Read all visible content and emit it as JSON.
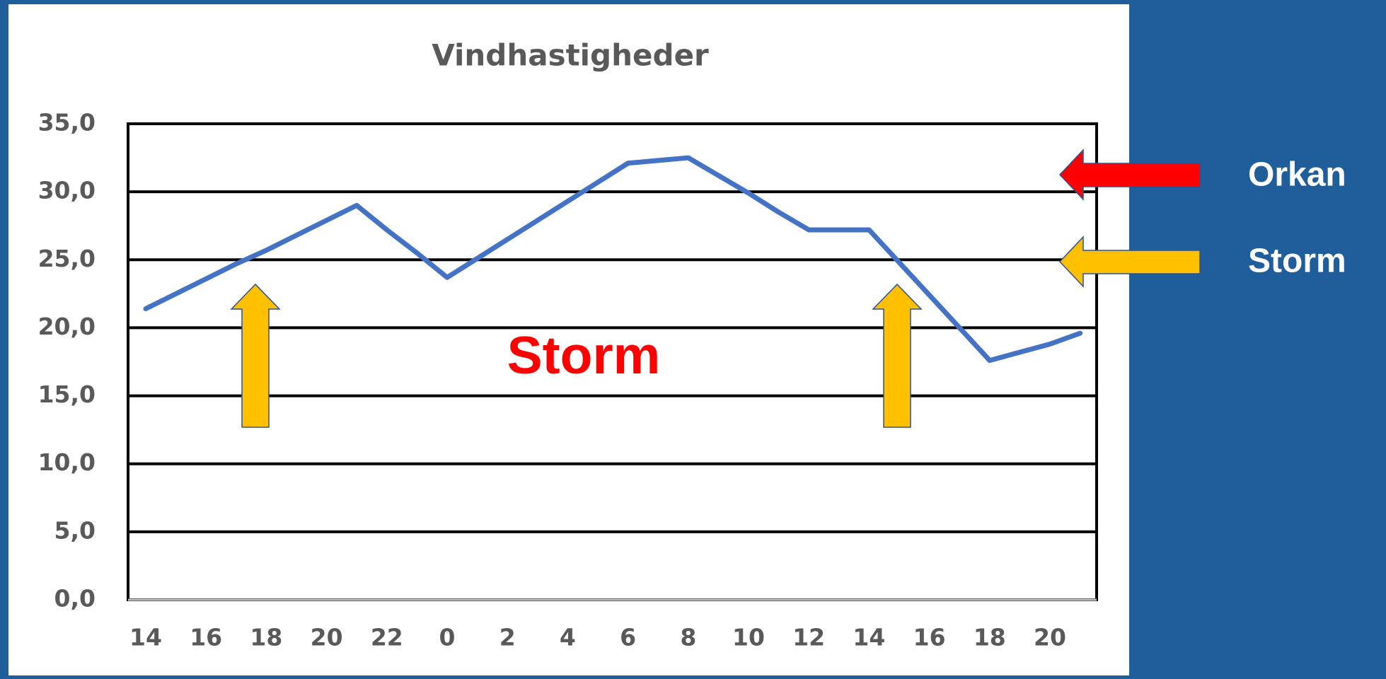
{
  "chart_data": {
    "type": "line",
    "title": "Vindhastigheder",
    "categories": [
      "14",
      null,
      "16",
      null,
      "18",
      null,
      "20",
      null,
      "22",
      null,
      "0",
      null,
      "2",
      null,
      "4",
      null,
      "6",
      null,
      "8",
      null,
      "10",
      null,
      "12",
      null,
      "14",
      null,
      "16",
      null,
      "18",
      null,
      "20",
      null
    ],
    "series": [
      {
        "color": "#4472c4",
        "values": [
          21.4,
          22.5,
          23.6,
          24.7,
          25.7,
          26.8,
          27.9,
          29.0,
          27.2,
          25.5,
          23.7,
          25.1,
          26.5,
          27.9,
          29.3,
          30.7,
          32.1,
          32.3,
          32.5,
          31.2,
          29.9,
          28.5,
          27.2,
          27.2,
          27.2,
          24.8,
          22.4,
          20.0,
          17.6,
          18.2,
          18.8,
          19.6
        ]
      }
    ],
    "ylim": [
      0,
      35
    ],
    "yticks": [
      {
        "value": 0,
        "label": "0,0"
      },
      {
        "value": 5,
        "label": "5,0"
      },
      {
        "value": 10,
        "label": "10,0"
      },
      {
        "value": 15,
        "label": "15,0"
      },
      {
        "value": 20,
        "label": "20,0"
      },
      {
        "value": 25,
        "label": "25,0"
      },
      {
        "value": 30,
        "label": "30,0"
      },
      {
        "value": 35,
        "label": "35,0"
      }
    ],
    "grid": true,
    "annotations": [
      "Storm",
      "Orkan",
      "Storm"
    ]
  }
}
